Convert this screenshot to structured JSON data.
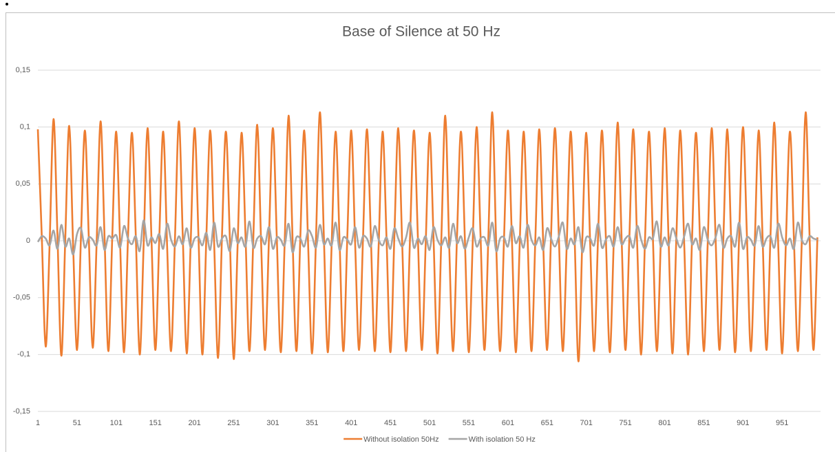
{
  "chart_data": {
    "type": "line",
    "title": "Base of Silence at 50 Hz",
    "x": [
      1,
      6,
      11,
      16,
      21,
      26,
      31,
      36,
      41,
      46,
      51,
      56,
      61,
      66,
      71,
      76,
      81,
      86,
      91,
      96,
      101,
      106,
      111,
      116,
      121,
      126,
      131,
      136,
      141,
      146,
      151,
      156,
      161,
      166,
      171,
      176,
      181,
      186,
      191,
      196,
      201,
      206,
      211,
      216,
      221,
      226,
      231,
      236,
      241,
      246,
      251,
      256,
      261,
      266,
      271,
      276,
      281,
      286,
      291,
      296,
      301,
      306,
      311,
      316,
      321,
      326,
      331,
      336,
      341,
      346,
      351,
      356,
      361,
      366,
      371,
      376,
      381,
      386,
      391,
      396,
      401,
      406,
      411,
      416,
      421,
      426,
      431,
      436,
      441,
      446,
      451,
      456,
      461,
      466,
      471,
      476,
      481,
      486,
      491,
      496,
      501,
      506,
      511,
      516,
      521,
      526,
      531,
      536,
      541,
      546,
      551,
      556,
      561,
      566,
      571,
      576,
      581,
      586,
      591,
      596,
      601,
      606,
      611,
      616,
      621,
      626,
      631,
      636,
      641,
      646,
      651,
      656,
      661,
      666,
      671,
      676,
      681,
      686,
      691,
      696,
      701,
      706,
      711,
      716,
      721,
      726,
      731,
      736,
      741,
      746,
      751,
      756,
      761,
      766,
      771,
      776,
      781,
      786,
      791,
      796,
      801,
      806,
      811,
      816,
      821,
      826,
      831,
      836,
      841,
      846,
      851,
      856,
      861,
      866,
      871,
      876,
      881,
      886,
      891,
      896,
      901,
      906,
      911,
      916,
      921,
      926,
      931,
      936,
      941,
      946,
      951,
      956,
      961,
      966,
      971,
      976,
      981,
      986,
      991,
      996
    ],
    "series": [
      {
        "name": "Without isolation 50Hz",
        "color": "#ed7d31",
        "values": [
          0.098,
          0.004,
          -0.093,
          -0.003,
          0.107,
          0.005,
          -0.101,
          0.002,
          0.101,
          -0.004,
          -0.096,
          0.003,
          0.097,
          0.003,
          -0.094,
          -0.002,
          0.105,
          0.006,
          -0.097,
          0.004,
          0.096,
          -0.003,
          -0.098,
          0.002,
          0.095,
          0.004,
          -0.1,
          -0.004,
          0.099,
          0.002,
          -0.096,
          0.003,
          0.096,
          -0.005,
          -0.097,
          0.002,
          0.105,
          0.003,
          -0.099,
          -0.003,
          0.099,
          0.004,
          -0.1,
          0.002,
          0.097,
          -0.002,
          -0.103,
          0.004,
          0.096,
          0.003,
          -0.104,
          -0.003,
          0.095,
          0.005,
          -0.097,
          0.002,
          0.102,
          -0.003,
          -0.096,
          0.003,
          0.099,
          0.002,
          -0.098,
          -0.002,
          0.11,
          0.004,
          -0.097,
          0.003,
          0.097,
          -0.004,
          -0.099,
          0.002,
          0.113,
          0.005,
          -0.098,
          -0.003,
          0.096,
          0.002,
          -0.097,
          0.004,
          0.097,
          -0.003,
          -0.096,
          0.002,
          0.098,
          0.004,
          -0.097,
          -0.004,
          0.096,
          0.003,
          -0.098,
          0.003,
          0.099,
          -0.002,
          -0.097,
          0.002,
          0.097,
          0.004,
          -0.096,
          -0.003,
          0.095,
          0.003,
          -0.099,
          0.002,
          0.11,
          -0.004,
          -0.097,
          0.004,
          0.096,
          0.002,
          -0.098,
          -0.002,
          0.1,
          0.005,
          -0.096,
          0.003,
          0.113,
          -0.003,
          -0.097,
          0.002,
          0.097,
          0.003,
          -0.098,
          -0.003,
          0.096,
          0.004,
          -0.097,
          0.002,
          0.098,
          -0.002,
          -0.096,
          0.004,
          0.099,
          0.003,
          -0.097,
          -0.004,
          0.096,
          0.005,
          -0.106,
          0.002,
          0.095,
          -0.003,
          -0.097,
          0.003,
          0.097,
          0.002,
          -0.098,
          -0.002,
          0.104,
          0.004,
          -0.096,
          0.003,
          0.098,
          -0.004,
          -0.1,
          0.002,
          0.096,
          0.003,
          -0.097,
          -0.003,
          0.099,
          0.002,
          -0.099,
          0.004,
          0.097,
          -0.003,
          -0.1,
          0.002,
          0.095,
          0.004,
          -0.097,
          -0.002,
          0.099,
          0.003,
          -0.096,
          0.003,
          0.098,
          -0.002,
          -0.098,
          0.002,
          0.1,
          0.005,
          -0.097,
          -0.003,
          0.097,
          0.003,
          -0.096,
          0.002,
          0.104,
          -0.004,
          -0.099,
          0.004,
          0.096,
          0.002,
          -0.097,
          -0.002,
          0.113,
          0.004,
          -0.096,
          0.003
        ]
      },
      {
        "name": "With isolation 50 Hz",
        "color": "#a5a5a5",
        "values": [
          -0.001,
          0.004,
          0.002,
          -0.004,
          0.009,
          -0.007,
          0.014,
          -0.005,
          0.002,
          -0.012,
          0.006,
          0.011,
          -0.006,
          0.003,
          0.001,
          -0.004,
          0.012,
          -0.008,
          0.004,
          0.002,
          0.005,
          -0.006,
          0.013,
          0.002,
          -0.003,
          0.004,
          -0.009,
          0.018,
          -0.004,
          0.003,
          -0.002,
          0.006,
          -0.007,
          0.015,
          0.001,
          -0.005,
          0.004,
          -0.003,
          0.011,
          -0.006,
          0.002,
          0.003,
          -0.004,
          0.007,
          -0.008,
          0.016,
          -0.005,
          0.002,
          0.004,
          -0.009,
          0.011,
          -0.002,
          0.003,
          -0.005,
          0.017,
          -0.006,
          0.002,
          0.004,
          -0.003,
          0.012,
          -0.007,
          0.003,
          0.001,
          -0.004,
          0.015,
          -0.01,
          0.003,
          0.002,
          -0.005,
          0.009,
          0.004,
          -0.006,
          0.014,
          -0.003,
          0.002,
          -0.004,
          0.016,
          -0.008,
          0.003,
          0.001,
          -0.003,
          0.012,
          -0.006,
          0.004,
          0.002,
          -0.005,
          0.013,
          0.001,
          -0.004,
          0.003,
          -0.007,
          0.011,
          0.002,
          -0.005,
          0.003,
          0.016,
          -0.006,
          0.002,
          -0.003,
          0.004,
          -0.008,
          0.012,
          0.001,
          -0.004,
          0.003,
          -0.006,
          0.015,
          -0.002,
          0.004,
          -0.007,
          0.003,
          0.011,
          -0.005,
          0.002,
          0.003,
          -0.004,
          0.016,
          -0.009,
          0.002,
          0.003,
          -0.005,
          0.013,
          -0.002,
          0.004,
          -0.006,
          0.014,
          0.001,
          -0.004,
          0.003,
          -0.008,
          0.011,
          0.002,
          -0.005,
          0.004,
          0.016,
          -0.007,
          0.002,
          -0.003,
          0.012,
          -0.01,
          0.003,
          0.002,
          -0.004,
          0.015,
          -0.006,
          0.001,
          0.004,
          -0.005,
          0.012,
          -0.003,
          0.002,
          0.004,
          -0.006,
          0.013,
          0.001,
          -0.007,
          0.003,
          0.002,
          0.017,
          -0.005,
          0.003,
          -0.004,
          0.011,
          0.002,
          -0.006,
          0.004,
          0.015,
          -0.003,
          0.002,
          -0.008,
          0.012,
          0.001,
          -0.004,
          0.003,
          0.014,
          -0.006,
          0.002,
          0.004,
          -0.005,
          0.016,
          -0.007,
          0.003,
          0.001,
          -0.004,
          0.013,
          -0.005,
          0.002,
          0.004,
          -0.006,
          0.015,
          0.003,
          -0.004,
          0.002,
          -0.007,
          0.016,
          0.001,
          -0.003,
          0.004,
          0.002,
          0.001
        ]
      }
    ],
    "xlim": [
      1,
      1000
    ],
    "xticks": [
      1,
      51,
      101,
      151,
      201,
      251,
      301,
      351,
      401,
      451,
      501,
      551,
      601,
      651,
      701,
      751,
      801,
      851,
      901,
      951
    ],
    "ylim": [
      -0.15,
      0.15
    ],
    "yticks": [
      {
        "value": -0.15,
        "label": "-0,15"
      },
      {
        "value": -0.1,
        "label": "-0,1"
      },
      {
        "value": -0.05,
        "label": "-0,05"
      },
      0,
      {
        "value": 0.05,
        "label": "0,05"
      },
      {
        "value": 0.1,
        "label": "0,1"
      },
      {
        "value": 0.15,
        "label": "0,15"
      }
    ],
    "grid": true,
    "legend": "bottom"
  }
}
